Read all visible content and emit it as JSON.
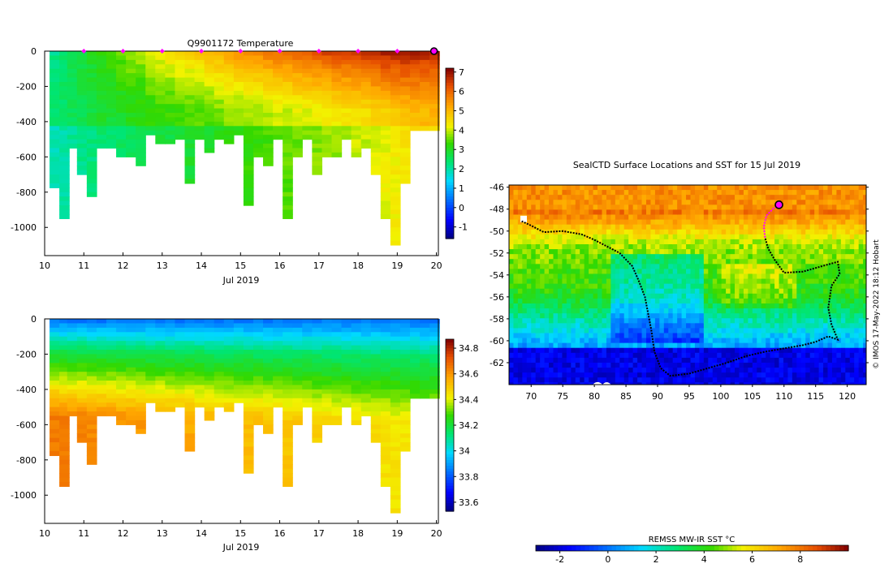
{
  "credit": "© IMOS 17-May-2022 18:12 Hobart",
  "chart_data": [
    {
      "id": "temperature",
      "type": "heatmap",
      "title": "Q9901172  Temperature",
      "xlabel": "Jul 2019",
      "ylabel": "",
      "xlim": [
        10,
        20.05
      ],
      "ylim": [
        -1160,
        0
      ],
      "xticks": [
        10,
        11,
        12,
        13,
        14,
        15,
        16,
        17,
        18,
        19,
        20
      ],
      "yticks": [
        0,
        -200,
        -400,
        -600,
        -800,
        -1000
      ],
      "colorbar": {
        "min": -1.6,
        "max": 7.2,
        "ticks": [
          -1,
          0,
          1,
          2,
          3,
          4,
          5,
          6,
          7
        ]
      },
      "surface_markers": [
        11,
        12,
        13,
        14,
        15,
        16,
        17,
        18,
        19
      ],
      "current_position_day": 20,
      "profile_days": [
        10.25,
        10.5,
        10.7,
        10.95,
        11.2,
        11.45,
        11.7,
        11.95,
        12.2,
        12.45,
        12.7,
        12.95,
        13.2,
        13.45,
        13.7,
        13.95,
        14.2,
        14.45,
        14.7,
        14.95,
        15.2,
        15.45,
        15.7,
        15.95,
        16.2,
        16.45,
        16.7,
        16.95,
        17.2,
        17.45,
        17.7,
        17.95,
        18.2,
        18.45,
        18.7,
        18.95,
        19.2,
        19.45,
        19.7,
        19.95
      ],
      "profile_depths": [
        760,
        940,
        540,
        700,
        810,
        530,
        530,
        600,
        580,
        650,
        460,
        510,
        520,
        480,
        750,
        500,
        570,
        480,
        520,
        470,
        870,
        590,
        650,
        500,
        940,
        580,
        500,
        680,
        600,
        580,
        500,
        590,
        540,
        680,
        930,
        1090,
        750,
        450,
        450,
        450
      ],
      "surface_temps": [
        2.2,
        2.4,
        2.6,
        2.8,
        3.0,
        3.2,
        3.4,
        3.6,
        3.8,
        3.9,
        4.1,
        4.3,
        4.5,
        4.6,
        4.7,
        4.8,
        5.0,
        5.2,
        5.3,
        5.5,
        5.6,
        5.7,
        5.8,
        5.9,
        6.0,
        6.1,
        6.2,
        6.3,
        6.4,
        6.5,
        6.5,
        6.6,
        6.7,
        6.8,
        6.9,
        6.9,
        7.0,
        6.9,
        6.8,
        6.6
      ],
      "deep_temps": [
        2.4,
        2.5,
        2.6,
        2.7,
        2.8,
        2.9,
        2.9,
        3.0,
        3.1,
        3.1,
        3.2,
        3.3,
        3.3,
        3.4,
        3.4,
        3.5,
        3.5,
        3.6,
        3.7,
        3.7,
        3.8,
        3.8,
        3.9,
        4.0,
        4.0,
        4.1,
        4.1,
        4.2,
        4.3,
        4.3,
        4.4,
        4.5,
        4.5,
        4.6,
        4.7,
        4.8,
        4.9,
        5.0,
        5.0,
        5.1
      ]
    },
    {
      "id": "salinity",
      "type": "heatmap",
      "title": "",
      "xlabel": "Jul 2019",
      "ylabel": "",
      "xlim": [
        10,
        20.05
      ],
      "ylim": [
        -1160,
        0
      ],
      "xticks": [
        10,
        11,
        12,
        13,
        14,
        15,
        16,
        17,
        18,
        19,
        20
      ],
      "yticks": [
        0,
        -200,
        -400,
        -600,
        -800,
        -1000
      ],
      "colorbar": {
        "min": 33.53,
        "max": 34.87,
        "ticks": [
          33.6,
          33.8,
          34,
          34.2,
          34.4,
          34.6,
          34.8
        ]
      },
      "surface_salinity": 33.85,
      "halocline_salinity": 34.15,
      "deep_salinity_start": 34.65,
      "deep_salinity_end": 34.42
    },
    {
      "id": "sst-map",
      "type": "heatmap",
      "title": "SealCTD Surface Locations and SST for 15 Jul 2019",
      "xlabel": "",
      "ylabel": "",
      "xlim": [
        66.5,
        123
      ],
      "ylim": [
        -64,
        -45.8
      ],
      "xticks": [
        70,
        75,
        80,
        85,
        90,
        95,
        100,
        105,
        110,
        115,
        120
      ],
      "yticks": [
        -46,
        -48,
        -50,
        -52,
        -54,
        -56,
        -58,
        -60,
        -62
      ],
      "colorbar": {
        "label": "REMSS MW-IR SST °C",
        "min": -3,
        "max": 10,
        "ticks": [
          -2,
          0,
          2,
          4,
          6,
          8
        ]
      },
      "track": [
        [
          68.5,
          -49.1
        ],
        [
          70,
          -49.5
        ],
        [
          72,
          -50.1
        ],
        [
          75,
          -50
        ],
        [
          78,
          -50.3
        ],
        [
          80,
          -50.8
        ],
        [
          82,
          -51.4
        ],
        [
          84,
          -52
        ],
        [
          86,
          -53.2
        ],
        [
          87,
          -54.5
        ],
        [
          88,
          -56
        ],
        [
          88.5,
          -57.5
        ],
        [
          89,
          -59
        ],
        [
          89.5,
          -61
        ],
        [
          90.5,
          -62.5
        ],
        [
          92,
          -63.2
        ],
        [
          95,
          -63
        ],
        [
          98,
          -62.5
        ],
        [
          101,
          -62
        ],
        [
          104,
          -61.4
        ],
        [
          107,
          -61
        ],
        [
          110,
          -60.7
        ],
        [
          113,
          -60.4
        ],
        [
          115,
          -60.1
        ],
        [
          117,
          -59.6
        ],
        [
          118.5,
          -59.9
        ],
        [
          117.5,
          -58.5
        ],
        [
          117,
          -57
        ],
        [
          117.5,
          -55
        ],
        [
          118.8,
          -53.9
        ],
        [
          118.5,
          -52.8
        ],
        [
          116,
          -53.2
        ],
        [
          113,
          -53.7
        ],
        [
          110,
          -53.8
        ],
        [
          108.5,
          -52.6
        ],
        [
          107.5,
          -51.6
        ],
        [
          107,
          -50.6
        ]
      ],
      "recent_track": [
        [
          107,
          -50.6
        ],
        [
          106.8,
          -49.6
        ],
        [
          107.2,
          -48.6
        ],
        [
          108.2,
          -48
        ],
        [
          109.2,
          -47.6
        ]
      ],
      "current_position": [
        109.2,
        -47.6
      ]
    }
  ]
}
